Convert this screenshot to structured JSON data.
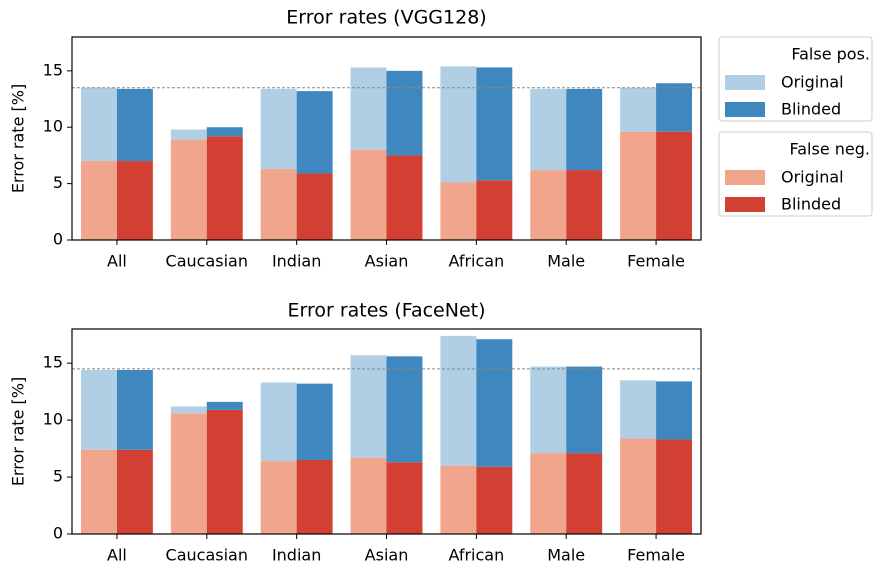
{
  "chart_data": [
    {
      "type": "bar",
      "stacked": true,
      "title": "Error rates (VGG128)",
      "ylabel": "Error rate [%]",
      "categories": [
        "All",
        "Caucasian",
        "Indian",
        "Asian",
        "African",
        "Male",
        "Female"
      ],
      "ylim": [
        0,
        18
      ],
      "yticks": [
        0,
        5,
        10,
        15
      ],
      "hline": 13.5,
      "legend": "outside upper right",
      "series_groups": [
        {
          "title": "False pos.",
          "series": [
            {
              "name": "Original",
              "color": "#b0cfe4",
              "values": [
                6.5,
                0.9,
                7.1,
                7.3,
                10.3,
                7.2,
                3.9
              ]
            },
            {
              "name": "Blinded",
              "color": "#3f87bf",
              "values": [
                6.4,
                0.8,
                7.3,
                7.5,
                10.0,
                7.2,
                4.3
              ]
            }
          ]
        },
        {
          "title": "False neg.",
          "series": [
            {
              "name": "Original",
              "color": "#f0a58c",
              "values": [
                7.0,
                8.9,
                6.3,
                8.0,
                5.1,
                6.2,
                9.6
              ]
            },
            {
              "name": "Blinded",
              "color": "#d23f33",
              "values": [
                7.0,
                9.2,
                5.9,
                7.5,
                5.3,
                6.2,
                9.6
              ]
            }
          ]
        }
      ]
    },
    {
      "type": "bar",
      "stacked": true,
      "title": "Error rates (FaceNet)",
      "ylabel": "Error rate [%]",
      "categories": [
        "All",
        "Caucasian",
        "Indian",
        "Asian",
        "African",
        "Male",
        "Female"
      ],
      "ylim": [
        0,
        18
      ],
      "yticks": [
        0,
        5,
        10,
        15
      ],
      "hline": 14.5,
      "series_groups": [
        {
          "series": [
            {
              "color": "#b0cfe4",
              "values": [
                7.0,
                0.6,
                6.9,
                9.0,
                11.4,
                7.6,
                5.1
              ]
            },
            {
              "color": "#3f87bf",
              "values": [
                7.0,
                0.7,
                6.7,
                9.3,
                11.2,
                7.6,
                5.1
              ]
            }
          ]
        },
        {
          "series": [
            {
              "color": "#f0a58c",
              "values": [
                7.4,
                10.6,
                6.4,
                6.7,
                6.0,
                7.1,
                8.4
              ]
            },
            {
              "color": "#d23f33",
              "values": [
                7.4,
                10.9,
                6.5,
                6.3,
                5.9,
                7.1,
                8.3
              ]
            }
          ]
        }
      ]
    }
  ]
}
